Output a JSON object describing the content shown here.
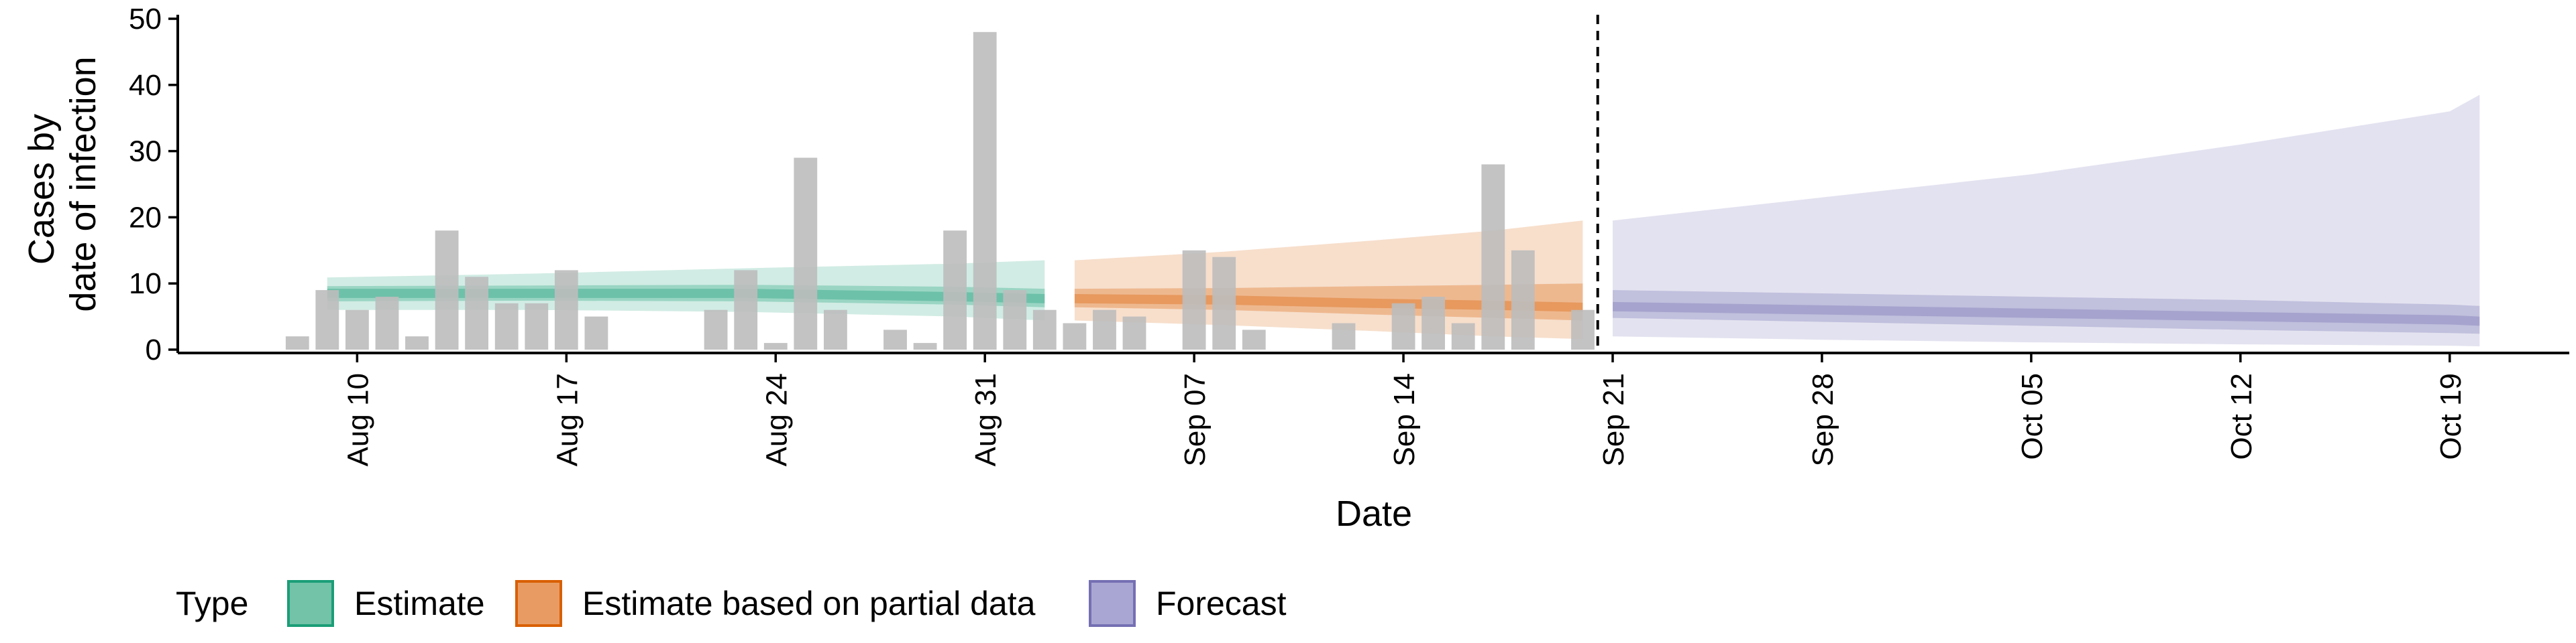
{
  "chart_data": {
    "type": "bar",
    "xlabel": "Date",
    "ylabel_lines": [
      "Cases by",
      "date of infection"
    ],
    "ylim": [
      0,
      50
    ],
    "yticks": [
      0,
      10,
      20,
      30,
      40,
      50
    ],
    "x_ticks": [
      {
        "date": "2020-08-10",
        "label": "Aug 10"
      },
      {
        "date": "2020-08-17",
        "label": "Aug 17"
      },
      {
        "date": "2020-08-24",
        "label": "Aug 24"
      },
      {
        "date": "2020-08-31",
        "label": "Aug 31"
      },
      {
        "date": "2020-09-07",
        "label": "Sep 07"
      },
      {
        "date": "2020-09-14",
        "label": "Sep 14"
      },
      {
        "date": "2020-09-21",
        "label": "Sep 21"
      },
      {
        "date": "2020-09-28",
        "label": "Sep 28"
      },
      {
        "date": "2020-10-05",
        "label": "Oct 05"
      },
      {
        "date": "2020-10-12",
        "label": "Oct 12"
      },
      {
        "date": "2020-10-19",
        "label": "Oct 19"
      }
    ],
    "x_range": [
      "2020-08-04",
      "2020-10-23"
    ],
    "cutoff_date": "2020-09-20",
    "reported_cases": [
      {
        "date": "2020-08-08",
        "value": 2
      },
      {
        "date": "2020-08-09",
        "value": 9
      },
      {
        "date": "2020-08-10",
        "value": 6
      },
      {
        "date": "2020-08-11",
        "value": 8
      },
      {
        "date": "2020-08-12",
        "value": 2
      },
      {
        "date": "2020-08-13",
        "value": 18
      },
      {
        "date": "2020-08-14",
        "value": 11
      },
      {
        "date": "2020-08-15",
        "value": 7
      },
      {
        "date": "2020-08-16",
        "value": 7
      },
      {
        "date": "2020-08-17",
        "value": 12
      },
      {
        "date": "2020-08-18",
        "value": 5
      },
      {
        "date": "2020-08-22",
        "value": 6
      },
      {
        "date": "2020-08-23",
        "value": 12
      },
      {
        "date": "2020-08-24",
        "value": 1
      },
      {
        "date": "2020-08-25",
        "value": 29
      },
      {
        "date": "2020-08-26",
        "value": 6
      },
      {
        "date": "2020-08-28",
        "value": 3
      },
      {
        "date": "2020-08-29",
        "value": 1
      },
      {
        "date": "2020-08-30",
        "value": 18
      },
      {
        "date": "2020-08-31",
        "value": 48
      },
      {
        "date": "2020-09-01",
        "value": 9
      },
      {
        "date": "2020-09-02",
        "value": 6
      },
      {
        "date": "2020-09-03",
        "value": 4
      },
      {
        "date": "2020-09-04",
        "value": 6
      },
      {
        "date": "2020-09-05",
        "value": 5
      },
      {
        "date": "2020-09-07",
        "value": 15
      },
      {
        "date": "2020-09-08",
        "value": 14
      },
      {
        "date": "2020-09-09",
        "value": 3
      },
      {
        "date": "2020-09-12",
        "value": 4
      },
      {
        "date": "2020-09-14",
        "value": 7
      },
      {
        "date": "2020-09-15",
        "value": 8
      },
      {
        "date": "2020-09-16",
        "value": 4
      },
      {
        "date": "2020-09-17",
        "value": 28
      },
      {
        "date": "2020-09-18",
        "value": 15
      },
      {
        "date": "2020-09-20",
        "value": 6
      }
    ],
    "series": [
      {
        "name": "Estimate",
        "color": "#1b9e77",
        "x": [
          "2020-08-09",
          "2020-08-16",
          "2020-08-23",
          "2020-08-30",
          "2020-09-02"
        ],
        "median": [
          8.5,
          8.5,
          8.5,
          8,
          7.7
        ],
        "inner_lower": [
          7.3,
          7.4,
          7.3,
          6.8,
          6.4
        ],
        "inner_upper": [
          9.6,
          9.7,
          9.8,
          9.5,
          9.2
        ],
        "outer_lower": [
          6,
          6,
          5.7,
          5,
          4.4
        ],
        "outer_upper": [
          10.9,
          11.5,
          12.3,
          13,
          13.5
        ]
      },
      {
        "name": "Estimate based on partial data",
        "color": "#d95f02",
        "x": [
          "2020-09-03",
          "2020-09-08",
          "2020-09-13",
          "2020-09-17",
          "2020-09-20"
        ],
        "median": [
          7.7,
          7.5,
          7,
          6.7,
          6.4
        ],
        "inner_lower": [
          6.4,
          6,
          5.3,
          4.8,
          4.4
        ],
        "inner_upper": [
          9.2,
          9.3,
          9.6,
          9.8,
          10
        ],
        "outer_lower": [
          4.4,
          3.7,
          2.8,
          2,
          1.6
        ],
        "outer_upper": [
          13.5,
          14.8,
          16.5,
          18,
          19.5
        ]
      },
      {
        "name": "Forecast",
        "color": "#7570b3",
        "x": [
          "2020-09-21",
          "2020-09-28",
          "2020-10-05",
          "2020-10-12",
          "2020-10-19",
          "2020-10-20"
        ],
        "median": [
          6.5,
          6,
          5.5,
          5,
          4.5,
          4.3
        ],
        "inner_lower": [
          4.8,
          4.2,
          3.6,
          3,
          2.5,
          2.4
        ],
        "inner_upper": [
          9,
          8.5,
          8,
          7.5,
          6.8,
          6.6
        ],
        "outer_lower": [
          2,
          1.5,
          1.1,
          0.8,
          0.6,
          0.5
        ],
        "outer_upper": [
          19.5,
          23,
          26.5,
          31,
          36,
          38.5
        ]
      }
    ],
    "legend": {
      "title": "Type",
      "position": "bottom",
      "items": [
        {
          "label": "Estimate",
          "color": "#1b9e77",
          "fill": "#72c3a8"
        },
        {
          "label": "Estimate based on partial data",
          "color": "#d95f02",
          "fill": "#e89c64"
        },
        {
          "label": "Forecast",
          "color": "#7570b3",
          "fill": "#aaa6d3"
        }
      ]
    },
    "grid": false
  }
}
